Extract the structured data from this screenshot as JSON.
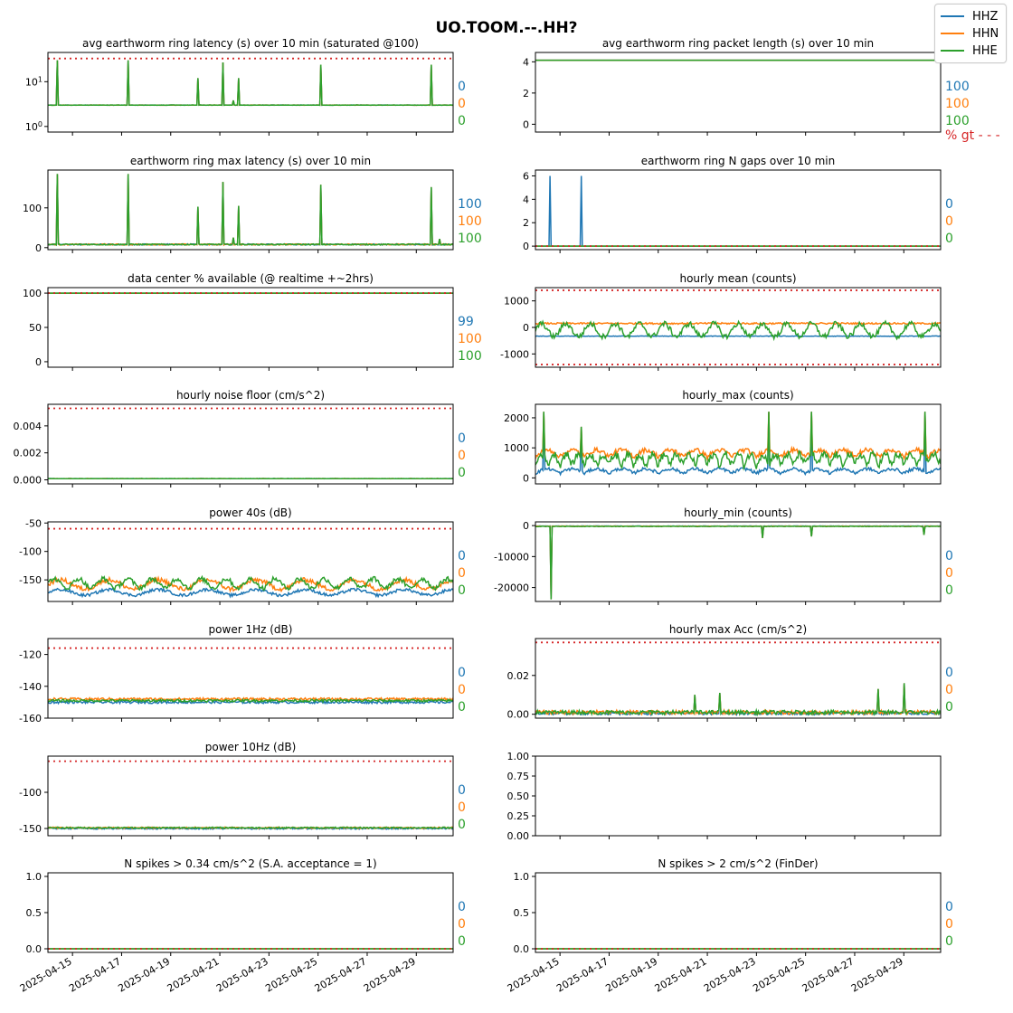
{
  "figure": {
    "title": "UO.TOOM.--.HH?"
  },
  "legend": [
    {
      "name": "HHZ",
      "color": "#1f77b4"
    },
    {
      "name": "HHN",
      "color": "#ff7f0e"
    },
    {
      "name": "HHE",
      "color": "#2ca02c"
    }
  ],
  "threshold_color": "#d62728",
  "x_ticks": [
    "2025-04-15",
    "2025-04-17",
    "2025-04-19",
    "2025-04-21",
    "2025-04-23",
    "2025-04-25",
    "2025-04-27",
    "2025-04-29"
  ],
  "x_range": [
    "2025-04-14 00:00",
    "2025-04-30 12:00"
  ],
  "chart_data": [
    {
      "id": "p0",
      "type": "line",
      "title": "avg earthworm ring latency (s)   over 10 min (saturated @100)",
      "yscale": "log",
      "ylim": [
        0.75,
        45
      ],
      "yticks": [
        "10^0",
        "10^1"
      ],
      "threshold": 33,
      "baseline": [
        3.0,
        3.0,
        3.0
      ],
      "noise": 0.05,
      "spikes": [
        {
          "x": "2025-04-14 09:00",
          "v": 30
        },
        {
          "x": "2025-04-17 06:00",
          "v": 30
        },
        {
          "x": "2025-04-20 03:00",
          "v": 12
        },
        {
          "x": "2025-04-21 03:00",
          "v": 27
        },
        {
          "x": "2025-04-21 13:00",
          "v": 3.8
        },
        {
          "x": "2025-04-21 18:00",
          "v": 12
        },
        {
          "x": "2025-04-25 03:00",
          "v": 24
        },
        {
          "x": "2025-04-29 15:00",
          "v": 24
        }
      ],
      "pct": [
        "0",
        "0",
        "0"
      ]
    },
    {
      "id": "p1",
      "type": "line",
      "title": "avg earthworm ring packet length (s)   over 10 min",
      "ylim": [
        -0.5,
        4.6
      ],
      "yticks": [
        0,
        2,
        4
      ],
      "threshold": null,
      "baseline": [
        4.1,
        4.1,
        4.1
      ],
      "noise": 0,
      "spikes": [],
      "pct": [
        "100",
        "100",
        "100"
      ],
      "pct_note": "% gt - - -"
    },
    {
      "id": "p2",
      "type": "line",
      "title": "earthworm ring max latency (s)   over 10 min",
      "ylim": [
        -5,
        195
      ],
      "yticks": [
        0,
        100
      ],
      "threshold": null,
      "baseline": [
        8,
        8,
        8
      ],
      "noise": 3,
      "spikes": [
        {
          "x": "2025-04-14 09:00",
          "v": 185
        },
        {
          "x": "2025-04-17 06:00",
          "v": 185
        },
        {
          "x": "2025-04-20 03:00",
          "v": 103
        },
        {
          "x": "2025-04-21 03:00",
          "v": 165
        },
        {
          "x": "2025-04-21 13:00",
          "v": 25
        },
        {
          "x": "2025-04-21 18:00",
          "v": 105
        },
        {
          "x": "2025-04-25 03:00",
          "v": 158
        },
        {
          "x": "2025-04-29 15:00",
          "v": 152
        },
        {
          "x": "2025-04-29 23:00",
          "v": 22
        }
      ],
      "pct": [
        "100",
        "100",
        "100"
      ]
    },
    {
      "id": "p3",
      "type": "line",
      "title": "earthworm ring N gaps   over 10 min",
      "ylim": [
        -0.3,
        6.5
      ],
      "yticks": [
        0,
        2,
        4,
        6
      ],
      "threshold": 0,
      "baseline": [
        0,
        0,
        0
      ],
      "noise": 0,
      "spikes_by_series": [
        [
          {
            "x": "2025-04-14 14:00",
            "v": 6
          },
          {
            "x": "2025-04-15 21:00",
            "v": 6
          }
        ],
        [],
        []
      ],
      "pct": [
        "0",
        "0",
        "0"
      ]
    },
    {
      "id": "p4",
      "type": "line",
      "title": "data center % available (@ realtime +~2hrs)",
      "ylim": [
        -8,
        108
      ],
      "yticks": [
        0,
        50,
        100
      ],
      "threshold": 100,
      "baseline": [
        100,
        100,
        100
      ],
      "noise": 0,
      "spikes": [],
      "pct": [
        "99",
        "100",
        "100"
      ]
    },
    {
      "id": "p5",
      "type": "line",
      "title": "hourly mean (counts)",
      "ylim": [
        -1500,
        1500
      ],
      "yticks": [
        -1000,
        0,
        1000
      ],
      "threshold": [
        1400,
        -1400
      ],
      "baseline": [
        -330,
        150,
        -100
      ],
      "noise": [
        20,
        60,
        200
      ],
      "pct": []
    },
    {
      "id": "p6",
      "type": "line",
      "title": "hourly noise floor (cm/s^2)",
      "ylim": [
        -0.0003,
        0.0056
      ],
      "yticks": [
        "0.000",
        "0.002",
        "0.004"
      ],
      "threshold": 0.0053,
      "baseline": [
        9e-05,
        9e-05,
        9e-05
      ],
      "noise": 2e-05,
      "spikes": [],
      "pct": [
        "0",
        "0",
        "0"
      ]
    },
    {
      "id": "p7",
      "type": "line",
      "title": "hourly_max (counts)",
      "ylim": [
        -200,
        2450
      ],
      "yticks": [
        0,
        1000,
        2000
      ],
      "threshold": null,
      "baseline": [
        150,
        700,
        400
      ],
      "noise": [
        100,
        150,
        250
      ],
      "spikes": [
        {
          "x": "2025-04-14 08:00",
          "v": 2200
        },
        {
          "x": "2025-04-15 21:00",
          "v": 1700
        },
        {
          "x": "2025-04-23 12:00",
          "v": 2200
        },
        {
          "x": "2025-04-25 06:00",
          "v": 2200
        },
        {
          "x": "2025-04-29 21:00",
          "v": 2200
        }
      ],
      "pct": []
    },
    {
      "id": "p8",
      "type": "line",
      "title": "power 40s (dB)",
      "ylim": [
        -188,
        -48
      ],
      "yticks": [
        -50,
        -100,
        -150
      ],
      "threshold": -60,
      "baseline": [
        -172,
        -158,
        -156
      ],
      "noise": [
        5,
        8,
        8
      ],
      "spikes": [],
      "pct": [
        "0",
        "0",
        "0"
      ]
    },
    {
      "id": "p9",
      "type": "line",
      "title": "hourly_min (counts)",
      "ylim": [
        -24500,
        1200
      ],
      "yticks": [
        0,
        -10000,
        -20000
      ],
      "threshold": null,
      "baseline": [
        -150,
        -200,
        -250
      ],
      "noise": [
        100,
        120,
        150
      ],
      "spikes": [
        {
          "x": "2025-04-14 15:00",
          "v": -23800
        },
        {
          "x": "2025-04-23 06:00",
          "v": -4000
        },
        {
          "x": "2025-04-25 06:00",
          "v": -3500
        },
        {
          "x": "2025-04-29 20:00",
          "v": -3000
        }
      ],
      "pct": [
        "0",
        "0",
        "0"
      ]
    },
    {
      "id": "p10",
      "type": "line",
      "title": "power 1Hz (dB)",
      "ylim": [
        -160,
        -110
      ],
      "yticks": [
        -120,
        -140,
        -160
      ],
      "threshold": -116,
      "baseline": [
        -150,
        -148,
        -149
      ],
      "noise": [
        1.5,
        1.5,
        1.5
      ],
      "pct": [
        "0",
        "0",
        "0"
      ]
    },
    {
      "id": "p11",
      "type": "line",
      "title": "hourly max Acc (cm/s^2)",
      "ylim": [
        -0.002,
        0.039
      ],
      "yticks": [
        "0.00",
        "0.02"
      ],
      "threshold": 0.037,
      "baseline": [
        0.0005,
        0.001,
        0.001
      ],
      "noise": [
        0.0015,
        0.002,
        0.002
      ],
      "spikes": [
        {
          "x": "2025-04-20 12:00",
          "v": 0.01
        },
        {
          "x": "2025-04-21 12:00",
          "v": 0.011
        },
        {
          "x": "2025-04-27 23:00",
          "v": 0.013
        },
        {
          "x": "2025-04-29 00:00",
          "v": 0.016
        }
      ],
      "pct": [
        "0",
        "0",
        "0"
      ]
    },
    {
      "id": "p12",
      "type": "line",
      "title": "power 10Hz (dB)",
      "ylim": [
        -160,
        -50
      ],
      "yticks": [
        -100,
        -150
      ],
      "threshold": -57,
      "baseline": [
        -150,
        -149,
        -149
      ],
      "noise": [
        2,
        2,
        2
      ],
      "pct": [
        "0",
        "0",
        "0"
      ]
    },
    {
      "id": "p13",
      "type": "empty",
      "title": "",
      "ylim": [
        0,
        1
      ],
      "yticks": [
        "0.00",
        "0.25",
        "0.50",
        "0.75",
        "1.00"
      ]
    },
    {
      "id": "p14",
      "type": "line",
      "title": "N spikes > 0.34 cm/s^2 (S.A. acceptance = 1)",
      "ylim": [
        -0.05,
        1.05
      ],
      "yticks": [
        "0.0",
        "0.5",
        "1.0"
      ],
      "threshold": 0,
      "baseline": [
        0,
        0,
        0
      ],
      "noise": 0,
      "spikes": [],
      "pct": [
        "0",
        "0",
        "0"
      ],
      "show_xticks": true
    },
    {
      "id": "p15",
      "type": "line",
      "title": "N spikes > 2 cm/s^2 (FinDer)",
      "ylim": [
        -0.05,
        1.05
      ],
      "yticks": [
        "0.0",
        "0.5",
        "1.0"
      ],
      "threshold": 0,
      "baseline": [
        0,
        0,
        0
      ],
      "noise": 0,
      "spikes": [],
      "pct": [
        "0",
        "0",
        "0"
      ],
      "show_xticks": true
    }
  ]
}
